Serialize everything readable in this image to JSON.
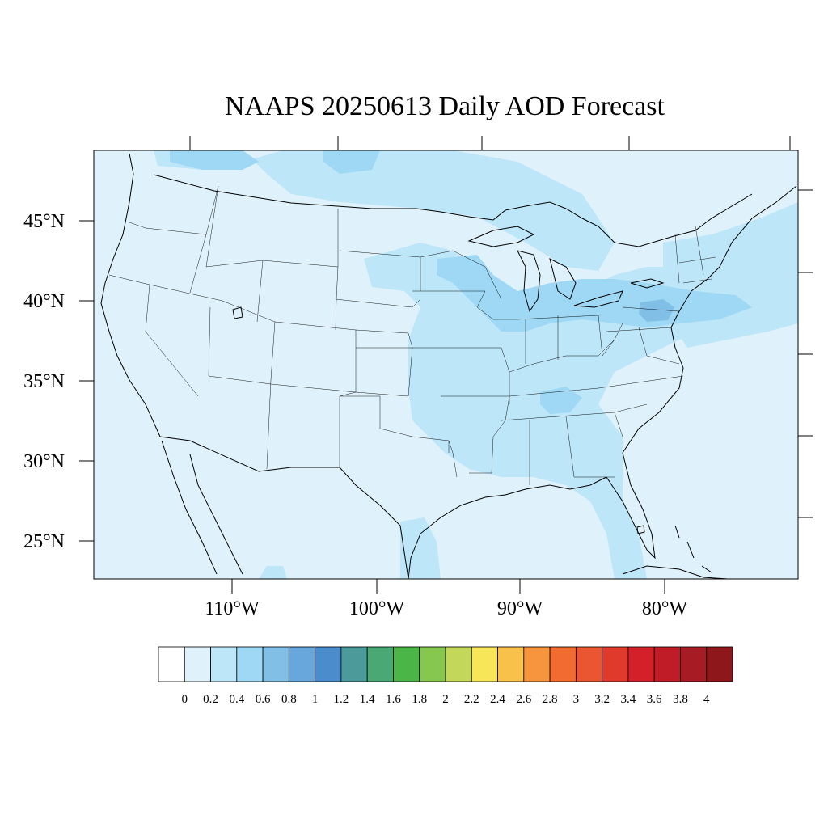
{
  "title": "NAAPS 20250613 Daily AOD Forecast",
  "map": {
    "projection": "Lambert Conformal (NCL-style)",
    "region": "Contiguous United States",
    "lat_labels": [
      "45°N",
      "40°N",
      "35°N",
      "30°N",
      "25°N"
    ],
    "lon_labels": [
      "110°W",
      "100°W",
      "90°W",
      "80°W"
    ],
    "background_color": "#dff2fb"
  },
  "colorbar": {
    "labels": [
      "0",
      "0.2",
      "0.4",
      "0.6",
      "0.8",
      "1",
      "1.2",
      "1.4",
      "1.6",
      "1.8",
      "2",
      "2.2",
      "2.4",
      "2.6",
      "2.8",
      "3",
      "3.2",
      "3.4",
      "3.6",
      "3.8",
      "4"
    ],
    "colors": [
      "#ffffff",
      "#dff2fb",
      "#bde6f8",
      "#9ed8f4",
      "#82bfe6",
      "#68a7db",
      "#4a8ccc",
      "#4d9a9a",
      "#4aa874",
      "#4bb548",
      "#86c750",
      "#c3d85a",
      "#f7e657",
      "#f8c14a",
      "#f6953e",
      "#f26b31",
      "#ea5532",
      "#e03a2c",
      "#d42029",
      "#bf1c28",
      "#a71b24",
      "#8e171b"
    ]
  },
  "chart_data": {
    "type": "heatmap",
    "title": "NAAPS 20250613 Daily AOD Forecast",
    "xlabel": "",
    "ylabel": "",
    "x_ticks": [
      "110°W",
      "100°W",
      "90°W",
      "80°W"
    ],
    "y_ticks": [
      "45°N",
      "40°N",
      "35°N",
      "30°N",
      "25°N"
    ],
    "colorbar_levels": [
      0,
      0.2,
      0.4,
      0.6,
      0.8,
      1,
      1.2,
      1.4,
      1.6,
      1.8,
      2,
      2.2,
      2.4,
      2.6,
      2.8,
      3,
      3.2,
      3.4,
      3.6,
      3.8,
      4
    ],
    "regions": [
      {
        "name": "background (most of US and oceans)",
        "aod_range": "0–0.2"
      },
      {
        "name": "northern plains / Canada border band",
        "aod_range": "0.2–0.4"
      },
      {
        "name": "Mississippi valley and Southeast",
        "aod_range": "0.2–0.4"
      },
      {
        "name": "Lake Michigan to Ohio valley",
        "aod_range": "0.4–0.6"
      },
      {
        "name": "Pennsylvania / Mid-Atlantic",
        "aod_range": "0.6–0.8"
      },
      {
        "name": "Northeast / Atlantic plume",
        "aod_range": "0.2–0.6"
      },
      {
        "name": "Tennessee valley spot",
        "aod_range": "0.4–0.6"
      },
      {
        "name": "Lake Superior / Ontario band",
        "aod_range": "0.4–0.6"
      }
    ]
  }
}
